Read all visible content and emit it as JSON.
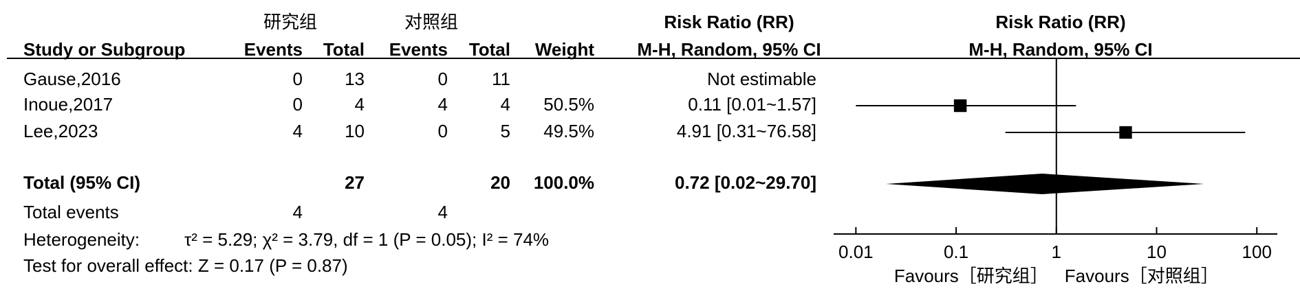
{
  "chart_data": {
    "type": "forest",
    "group_labels": [
      "研究组",
      "对照组"
    ],
    "columns": [
      "Study or Subgroup",
      "Events",
      "Total",
      "Events",
      "Total",
      "Weight"
    ],
    "effect_title": "Risk Ratio (RR)",
    "effect_subtitle": "M-H, Random, 95% CI",
    "studies": [
      {
        "name": "Gause,2016",
        "events1": 0,
        "total1": 13,
        "events2": 0,
        "total2": 11,
        "rr_label": "Not estimable"
      },
      {
        "name": "Inoue,2017",
        "events1": 0,
        "total1": 4,
        "events2": 4,
        "total2": 4,
        "weight": 50.5,
        "weight_label": "50.5%",
        "rr": 0.11,
        "ci": [
          0.01,
          1.57
        ],
        "rr_label": "0.11 [0.01~1.57]"
      },
      {
        "name": "Lee,2023",
        "events1": 4,
        "total1": 10,
        "events2": 0,
        "total2": 5,
        "weight": 49.5,
        "weight_label": "49.5%",
        "rr": 4.91,
        "ci": [
          0.31,
          76.58
        ],
        "rr_label": "4.91 [0.31~76.58]"
      }
    ],
    "total": {
      "name": "Total (95% CI)",
      "total1": 27,
      "total2": 20,
      "weight": 100.0,
      "weight_label": "100.0%",
      "rr": 0.72,
      "ci": [
        0.02,
        29.7
      ],
      "rr_label": "0.72 [0.02~29.70]"
    },
    "total_events": {
      "name": "Total events",
      "events1": 4,
      "events2": 4
    },
    "heterogeneity_label": "Heterogeneity:",
    "heterogeneity": "τ² = 5.29;  χ² = 3.79, df = 1 (P = 0.05); I² = 74%",
    "overall_effect": "Test for overall effect: Z = 0.17 (P = 0.87)",
    "xscale": "log",
    "xlim": [
      0.006,
      160
    ],
    "xticks": [
      0.01,
      0.1,
      1,
      10,
      100
    ],
    "null_line": 1,
    "favours": [
      "Favours［研究组］",
      "Favours［对照组］"
    ]
  }
}
